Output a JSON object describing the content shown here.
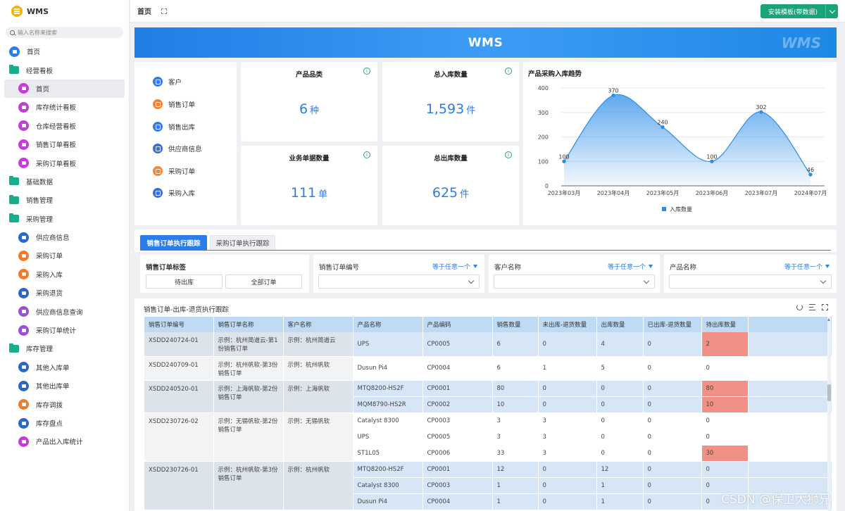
{
  "brand": {
    "title": "WMS"
  },
  "search": {
    "placeholder": "输入名称来搜索"
  },
  "nav": [
    {
      "label": "首页",
      "level": "top",
      "icon": "home-icon",
      "color": "#2b7de9"
    },
    {
      "label": "经营看板",
      "level": "top",
      "icon": "folder-icon",
      "color": "#1aad8d"
    },
    {
      "label": "首页",
      "level": "sub",
      "icon": "dashboard-icon",
      "color": "#c13fd6",
      "active": true
    },
    {
      "label": "库存统计看板",
      "level": "sub",
      "icon": "dashboard-icon",
      "color": "#c13fd6"
    },
    {
      "label": "仓库经营看板",
      "level": "sub",
      "icon": "dashboard-icon",
      "color": "#c13fd6"
    },
    {
      "label": "销售订单看板",
      "level": "sub",
      "icon": "dashboard-icon",
      "color": "#c13fd6"
    },
    {
      "label": "采购订单看板",
      "level": "sub",
      "icon": "dashboard-icon",
      "color": "#c13fd6"
    },
    {
      "label": "基础数据",
      "level": "top",
      "icon": "folder-icon",
      "color": "#1aad8d"
    },
    {
      "label": "销售管理",
      "level": "top",
      "icon": "folder-icon",
      "color": "#1aad8d"
    },
    {
      "label": "采购管理",
      "level": "top",
      "icon": "folder-icon",
      "color": "#1aad8d"
    },
    {
      "label": "供应商信息",
      "level": "sub",
      "icon": "user-icon",
      "color": "#2b66c9"
    },
    {
      "label": "采购订单",
      "level": "sub",
      "icon": "doc-icon",
      "color": "#f27a2b"
    },
    {
      "label": "采购入库",
      "level": "sub",
      "icon": "doc-icon",
      "color": "#f27a2b"
    },
    {
      "label": "采购退货",
      "level": "sub",
      "icon": "doc-icon",
      "color": "#2b66c9"
    },
    {
      "label": "供应商信息查询",
      "level": "sub",
      "icon": "chart-icon",
      "color": "#9b4fd9"
    },
    {
      "label": "采购订单统计",
      "level": "sub",
      "icon": "chart-icon",
      "color": "#9b4fd9"
    },
    {
      "label": "库存管理",
      "level": "top",
      "icon": "folder-icon",
      "color": "#1aad8d"
    },
    {
      "label": "其他入库单",
      "level": "sub",
      "icon": "doc-icon",
      "color": "#2b66c9"
    },
    {
      "label": "其他出库单",
      "level": "sub",
      "icon": "doc-icon",
      "color": "#2b66c9"
    },
    {
      "label": "库存调拨",
      "level": "sub",
      "icon": "doc-icon",
      "color": "#f27a2b"
    },
    {
      "label": "库存盘点",
      "level": "sub",
      "icon": "doc-icon",
      "color": "#2b66c9"
    },
    {
      "label": "产品出入库统计",
      "level": "sub",
      "icon": "doc-icon",
      "color": "#c13fd6"
    }
  ],
  "topbar": {
    "tab": "首页",
    "install_label": "安装模板(带数据)"
  },
  "banner": {
    "title": "WMS",
    "watermark": "WMS"
  },
  "quick_links": [
    {
      "label": "客户",
      "icon": "customer-icon",
      "color": "#3b7be0"
    },
    {
      "label": "销售订单",
      "icon": "sales-order-icon",
      "color": "#f0883a"
    },
    {
      "label": "销售出库",
      "icon": "sales-out-icon",
      "color": "#3b7be0"
    },
    {
      "label": "供应商信息",
      "icon": "supplier-icon",
      "color": "#3b6fd0"
    },
    {
      "label": "采购订单",
      "icon": "purchase-order-icon",
      "color": "#f0883a"
    },
    {
      "label": "采购入库",
      "icon": "purchase-in-icon",
      "color": "#3b6fd0"
    }
  ],
  "stats": [
    {
      "label": "产品品类",
      "value": "6",
      "unit": "种"
    },
    {
      "label": "总入库数量",
      "value": "1,593",
      "unit": "件"
    },
    {
      "label": "业务单据数量",
      "value": "111",
      "unit": "单"
    },
    {
      "label": "总出库数量",
      "value": "625",
      "unit": "件"
    }
  ],
  "chart_data": {
    "type": "area",
    "title": "产品采购入库趋势",
    "categories": [
      "2023年03月",
      "2023年04月",
      "2023年05月",
      "2023年06月",
      "2023年07月",
      "2024年07月"
    ],
    "series": [
      {
        "name": "入库数量",
        "values": [
          100,
          370,
          240,
          100,
          302,
          46
        ]
      }
    ],
    "ylim": [
      0,
      400
    ],
    "yticks": [
      0,
      100,
      200,
      300,
      400
    ],
    "legend": "bottom",
    "color": "#2b8ce8"
  },
  "tabs": {
    "sales": "销售订单执行跟踪",
    "purchase": "采购订单执行跟踪"
  },
  "filters": {
    "tags_label": "销售订单标签",
    "tag_pending": "待出库",
    "tag_all": "全部订单",
    "order_no_label": "销售订单编号",
    "customer_label": "客户名称",
    "product_label": "产品名称",
    "op": "等于任意一个"
  },
  "table": {
    "title": "销售订单-出库-退货执行跟踪",
    "columns": [
      "销售订单编号",
      "销售订单名称",
      "客户名称",
      "产品名称",
      "产品编码",
      "销售数量",
      "未出库-退货数量",
      "出库数量",
      "已出库-退货数量",
      "待出库数量"
    ],
    "groups": [
      {
        "order_no": "XSDD240724-01",
        "order_name": "示例：杭州简道云-第1份销售订单",
        "customer": "示例：杭州简道云",
        "rows": [
          [
            "UPS",
            "CP0005",
            "6",
            "0",
            "4",
            "0",
            "2"
          ]
        ],
        "highlight": [
          true
        ]
      },
      {
        "order_no": "XSDD240709-01",
        "order_name": "示例：杭州帆软-第3份销售订单",
        "customer": "示例：杭州帆软",
        "rows": [
          [
            "Dusun Pi4",
            "CP0004",
            "6",
            "1",
            "5",
            "0",
            "0"
          ]
        ],
        "highlight": [
          false
        ]
      },
      {
        "order_no": "XSDD240520-01",
        "order_name": "示例：上海帆软-第2份销售订单",
        "customer": "示例：上海帆软",
        "rows": [
          [
            "MTQ8200-HS2F",
            "CP0001",
            "80",
            "0",
            "0",
            "0",
            "80"
          ],
          [
            "MQM8790-HS2R",
            "CP0002",
            "10",
            "0",
            "0",
            "0",
            "10"
          ]
        ],
        "highlight": [
          true,
          true
        ]
      },
      {
        "order_no": "XSDD230726-02",
        "order_name": "示例：无锡帆软-第2份销售订单",
        "customer": "示例：无锡帆软",
        "rows": [
          [
            "Catalyst 8300",
            "CP0003",
            "3",
            "3",
            "0",
            "0",
            "0"
          ],
          [
            "UPS",
            "CP0005",
            "3",
            "3",
            "0",
            "0",
            "0"
          ],
          [
            "ST1L05",
            "CP0006",
            "33",
            "3",
            "0",
            "0",
            "30"
          ]
        ],
        "highlight": [
          false,
          false,
          true
        ]
      },
      {
        "order_no": "XSDD230726-01",
        "order_name": "示例：杭州帆软-第3份销售订单",
        "customer": "示例：杭州帆软",
        "rows": [
          [
            "MTQ8200-HS2F",
            "CP0001",
            "12",
            "0",
            "12",
            "0",
            "0"
          ],
          [
            "Catalyst 8300",
            "CP0003",
            "1",
            "0",
            "1",
            "0",
            "0"
          ],
          [
            "Dusun Pi4",
            "CP0004",
            "1",
            "0",
            "1",
            "0",
            "0"
          ]
        ],
        "highlight": [
          false,
          false,
          false
        ]
      }
    ]
  },
  "watermark": "CSDN @保卫大狮兄"
}
